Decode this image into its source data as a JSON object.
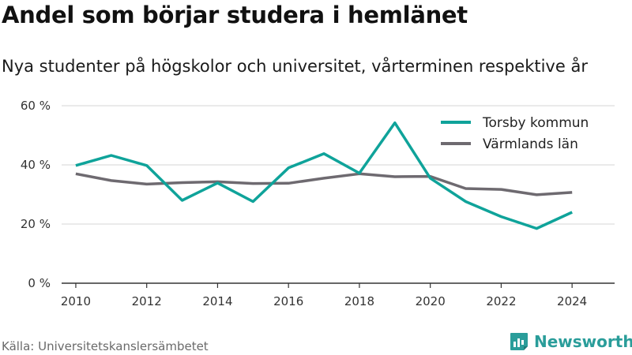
{
  "title": "Andel som börjar studera i hemlänet",
  "subtitle": "Nya studenter på högskolor och universitet, vårterminen respektive år",
  "source": "Källa: Universitetskanslersämbetet",
  "brand": "Newsworthy",
  "colors": {
    "torsby": "#0fa39a",
    "varmland": "#6e6a70",
    "grid": "#d6d6d6",
    "axis": "#333333",
    "brand": "#2a9d9a"
  },
  "chart_data": {
    "type": "line",
    "x": [
      2010,
      2011,
      2012,
      2013,
      2014,
      2015,
      2016,
      2017,
      2018,
      2019,
      2020,
      2021,
      2022,
      2023,
      2024
    ],
    "x_ticks": [
      2010,
      2012,
      2014,
      2016,
      2018,
      2020,
      2022,
      2024
    ],
    "y_ticks": [
      "0 %",
      "20 %",
      "40 %",
      "60 %"
    ],
    "y_tick_values": [
      0,
      20,
      40,
      60
    ],
    "ylim": [
      0,
      60
    ],
    "grid": true,
    "legend_position": "top-right",
    "series": [
      {
        "name": "Torsby kommun",
        "color": "#0fa39a",
        "values": [
          39.8,
          43.2,
          39.8,
          28.0,
          33.9,
          27.6,
          39.0,
          43.8,
          37.2,
          54.2,
          35.5,
          27.6,
          22.5,
          18.5,
          24.0
        ]
      },
      {
        "name": "Värmlands län",
        "color": "#6e6a70",
        "values": [
          37.0,
          34.7,
          33.5,
          34.0,
          34.3,
          33.7,
          33.8,
          35.5,
          37.0,
          36.0,
          36.1,
          32.0,
          31.7,
          29.9,
          30.7
        ]
      }
    ]
  }
}
